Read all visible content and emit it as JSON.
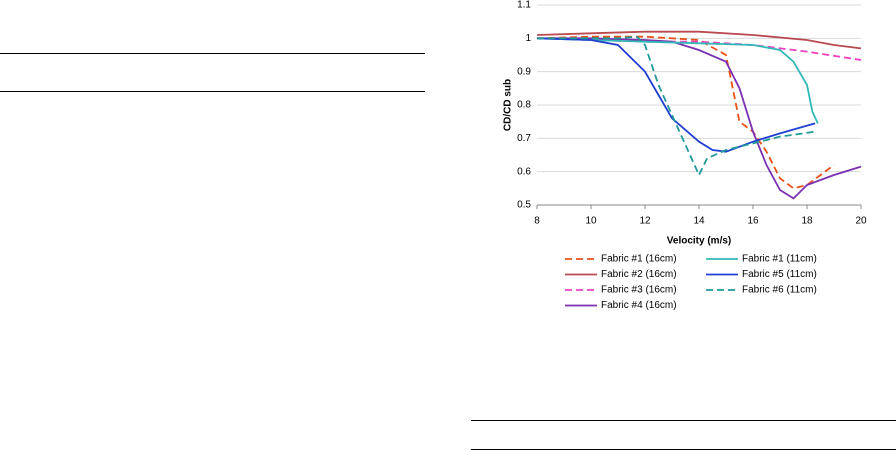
{
  "chart_data": {
    "type": "line",
    "x_label": "Velocity (m/s)",
    "y_label": "CD/CD sub",
    "xlim": [
      8,
      20
    ],
    "xticks": [
      8,
      10,
      12,
      14,
      16,
      18,
      20
    ],
    "ylim": [
      0.5,
      1.1
    ],
    "yticks": [
      0.5,
      0.6,
      0.7,
      0.8,
      0.9,
      1,
      1.1
    ],
    "grid": true,
    "legend": "bottom",
    "series": [
      {
        "name": "Fabric #1 (16cm)",
        "color": "#e8501a",
        "dash": true,
        "x": [
          8,
          10,
          12,
          14,
          15,
          15.5,
          16,
          16.5,
          17,
          17.5,
          18,
          18.5,
          19
        ],
        "values": [
          1.0,
          1.005,
          1.005,
          0.995,
          0.95,
          0.75,
          0.72,
          0.66,
          0.58,
          0.55,
          0.56,
          0.59,
          0.62
        ]
      },
      {
        "name": "Fabric #2 (16cm)",
        "color": "#b84a50",
        "dash": false,
        "x": [
          8,
          10,
          12,
          14,
          16,
          18,
          19,
          20
        ],
        "values": [
          1.01,
          1.015,
          1.02,
          1.02,
          1.01,
          0.995,
          0.98,
          0.97
        ]
      },
      {
        "name": "Fabric #3 (16cm)",
        "color": "#f040c0",
        "dash": true,
        "x": [
          8,
          10,
          12,
          14,
          16,
          18,
          20
        ],
        "values": [
          1.0,
          0.995,
          0.99,
          0.99,
          0.98,
          0.96,
          0.935
        ]
      },
      {
        "name": "Fabric #4 (16cm)",
        "color": "#7a30b0",
        "dash": false,
        "x": [
          8,
          10,
          12,
          13,
          14,
          15,
          15.5,
          16,
          16.5,
          17,
          17.5,
          18,
          19,
          20
        ],
        "values": [
          1.0,
          1.0,
          0.995,
          0.99,
          0.965,
          0.93,
          0.85,
          0.72,
          0.62,
          0.545,
          0.52,
          0.56,
          0.59,
          0.615
        ]
      },
      {
        "name": "Fabric #1 (11cm)",
        "color": "#33b8b8",
        "dash": false,
        "x": [
          8,
          10,
          12,
          14,
          16,
          17,
          17.5,
          18,
          18.2,
          18.4
        ],
        "values": [
          1.0,
          0.995,
          0.99,
          0.985,
          0.98,
          0.965,
          0.93,
          0.86,
          0.78,
          0.745
        ]
      },
      {
        "name": "Fabric #5 (11cm)",
        "color": "#1f3fd0",
        "dash": false,
        "x": [
          8,
          10,
          11,
          12,
          12.5,
          13,
          14,
          14.5,
          15,
          16,
          17,
          18.3
        ],
        "values": [
          1.0,
          0.995,
          0.98,
          0.9,
          0.83,
          0.76,
          0.69,
          0.665,
          0.66,
          0.69,
          0.715,
          0.745
        ]
      },
      {
        "name": "Fabric #6 (11cm)",
        "color": "#1f9a9a",
        "dash": true,
        "x": [
          8,
          10,
          11,
          11.7,
          12,
          12.5,
          13,
          13.5,
          14,
          14.3,
          15,
          16,
          17,
          18.3
        ],
        "values": [
          1.0,
          1.0,
          1.0,
          1.005,
          0.98,
          0.86,
          0.77,
          0.68,
          0.59,
          0.64,
          0.665,
          0.685,
          0.705,
          0.72
        ]
      }
    ]
  }
}
